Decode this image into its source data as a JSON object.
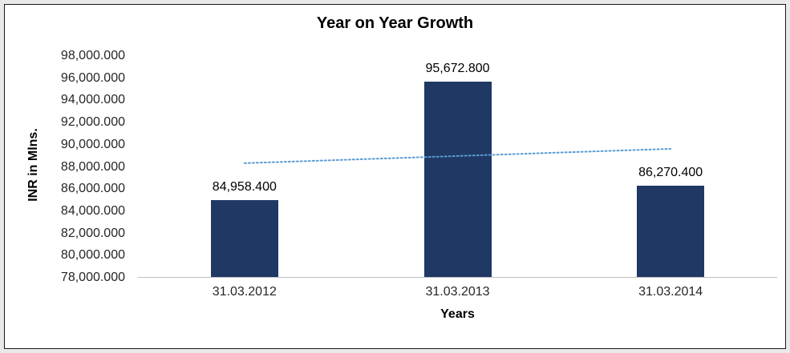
{
  "chart_data": {
    "type": "bar",
    "title": "Year on Year Growth",
    "xlabel": "Years",
    "ylabel": "INR in Mlns.",
    "categories": [
      "31.03.2012",
      "31.03.2013",
      "31.03.2014"
    ],
    "values": [
      84958.4,
      95672.8,
      86270.4
    ],
    "value_labels": [
      "84,958.400",
      "95,672.800",
      "86,270.400"
    ],
    "ylim": [
      78000,
      98000
    ],
    "ytick_step": 2000,
    "ytick_labels": [
      "78,000.000",
      "80,000.000",
      "82,000.000",
      "84,000.000",
      "86,000.000",
      "88,000.000",
      "90,000.000",
      "92,000.000",
      "94,000.000",
      "96,000.000",
      "98,000.000"
    ],
    "bar_color": "#1F3864",
    "grid": false,
    "legend": false,
    "trendline": {
      "style": "dotted",
      "color": "#5B9BD5",
      "start_value": 88300,
      "end_value": 89600
    }
  }
}
